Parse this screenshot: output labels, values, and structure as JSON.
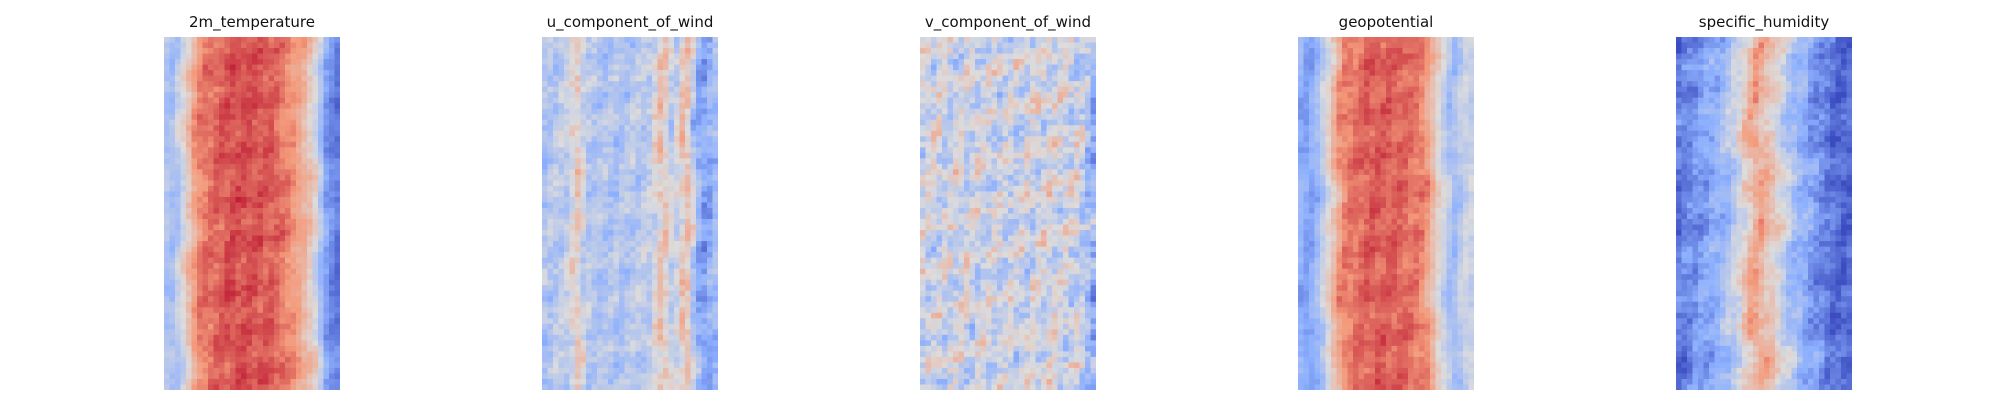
{
  "figure": {
    "colormap": "coolwarm",
    "colormap_stops": [
      "#3b4cc0",
      "#8db0fe",
      "#dddcdc",
      "#f49a7b",
      "#b40426"
    ],
    "axes": "off"
  },
  "chart_data": [
    {
      "type": "heatmap",
      "title": "2m_temperature",
      "grid": {
        "rows": 64,
        "cols": 32
      },
      "profile": [
        [
          0.0,
          0.05,
          0.1,
          0.18,
          0.22,
          0.4,
          0.62,
          0.75,
          0.85,
          0.92,
          1.0
        ],
        [
          0.38,
          0.32,
          0.45,
          0.75,
          0.8,
          0.88,
          0.85,
          0.74,
          0.55,
          0.2,
          0.1
        ]
      ],
      "wobble": 0.8,
      "noise": 0.08,
      "seed": 11
    },
    {
      "type": "heatmap",
      "title": "u_component_of_wind",
      "grid": {
        "rows": 64,
        "cols": 32
      },
      "profile": [
        [
          0.0,
          0.15,
          0.2,
          0.25,
          0.45,
          0.62,
          0.68,
          0.75,
          0.82,
          0.88,
          0.93,
          1.0
        ],
        [
          0.35,
          0.42,
          0.6,
          0.38,
          0.36,
          0.42,
          0.62,
          0.4,
          0.65,
          0.28,
          0.2,
          0.35
        ]
      ],
      "wobble": 0.6,
      "noise": 0.14,
      "seed": 23
    },
    {
      "type": "heatmap",
      "title": "v_component_of_wind",
      "grid": {
        "rows": 64,
        "cols": 32
      },
      "profile": [
        [
          0.0,
          0.25,
          0.5,
          0.75,
          0.9,
          1.0
        ],
        [
          0.45,
          0.46,
          0.44,
          0.48,
          0.45,
          0.25
        ]
      ],
      "wobble": 0.3,
      "noise": 0.24,
      "seed": 37
    },
    {
      "type": "heatmap",
      "title": "geopotential",
      "grid": {
        "rows": 64,
        "cols": 32
      },
      "profile": [
        [
          0.0,
          0.05,
          0.12,
          0.18,
          0.25,
          0.4,
          0.6,
          0.72,
          0.8,
          0.88,
          0.95,
          1.0
        ],
        [
          0.3,
          0.2,
          0.32,
          0.55,
          0.78,
          0.85,
          0.84,
          0.78,
          0.52,
          0.3,
          0.45,
          0.42
        ]
      ],
      "wobble": 0.8,
      "noise": 0.08,
      "seed": 51
    },
    {
      "type": "heatmap",
      "title": "specific_humidity",
      "grid": {
        "rows": 64,
        "cols": 32
      },
      "profile": [
        [
          0.0,
          0.1,
          0.25,
          0.35,
          0.45,
          0.55,
          0.65,
          0.8,
          0.9,
          1.0
        ],
        [
          0.1,
          0.18,
          0.28,
          0.45,
          0.72,
          0.58,
          0.35,
          0.18,
          0.08,
          0.06
        ]
      ],
      "wobble": 1.4,
      "noise": 0.12,
      "seed": 67
    }
  ]
}
